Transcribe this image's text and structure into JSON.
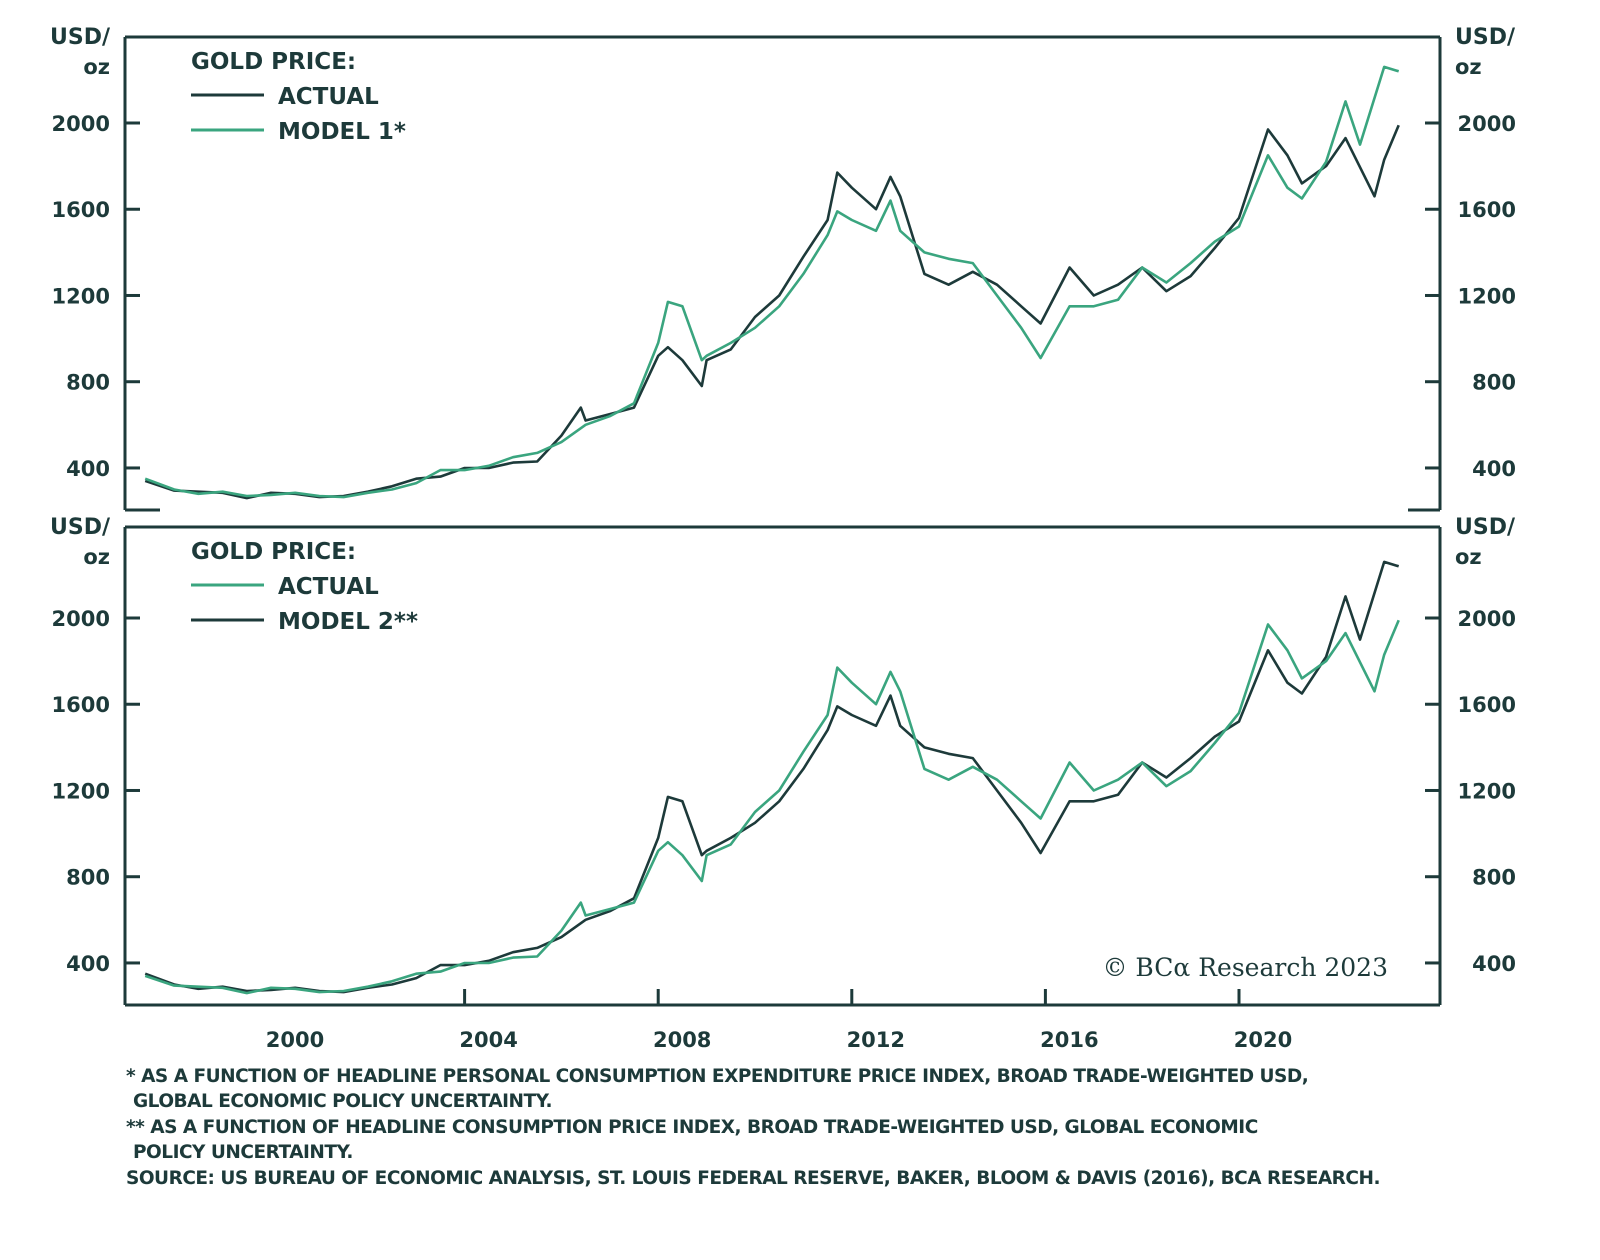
{
  "colors": {
    "dark": "#1d3a3a",
    "green": "#3aa57f"
  },
  "x_ticks": [
    2000,
    2004,
    2008,
    2012,
    2016,
    2020
  ],
  "y_ticks": [
    400,
    800,
    1200,
    1600,
    2000
  ],
  "unit_label_line1": "USD/",
  "unit_label_line2": "oz",
  "copyright": "© BCα Research 2023",
  "footnotes": {
    "note1_line1": "* AS A FUNCTION OF HEADLINE PERSONAL CONSUMPTION EXPENDITURE PRICE INDEX, BROAD TRADE-WEIGHTED USD,",
    "note1_line2": "GLOBAL ECONOMIC POLICY UNCERTAINTY.",
    "note2_line1": "** AS A FUNCTION OF HEADLINE CONSUMPTION PRICE INDEX, BROAD TRADE-WEIGHTED USD, GLOBAL ECONOMIC",
    "note2_line2": "POLICY UNCERTAINTY.",
    "source": "SOURCE: US BUREAU OF ECONOMIC ANALYSIS, ST. LOUIS FEDERAL RESERVE, BAKER, BLOOM & DAVIS (2016), BCA RESEARCH."
  },
  "chart_data": [
    {
      "type": "line",
      "title": "GOLD PRICE:",
      "ylabel": "USD/oz",
      "ylim": [
        220,
        2400
      ],
      "xlim": [
        1997,
        2024
      ],
      "legend": "top-left",
      "series": [
        {
          "name": "ACTUAL",
          "color": "dark",
          "x": [
            1997.4,
            1998,
            1998.5,
            1999,
            1999.5,
            2000,
            2000.5,
            2001,
            2001.5,
            2002,
            2002.5,
            2003,
            2003.5,
            2004,
            2004.5,
            2005,
            2005.5,
            2006,
            2006.4,
            2006.5,
            2007,
            2007.5,
            2008,
            2008.2,
            2008.5,
            2008.9,
            2009,
            2009.5,
            2010,
            2010.5,
            2011,
            2011.5,
            2011.7,
            2012,
            2012.5,
            2012.8,
            2013,
            2013.5,
            2014,
            2014.5,
            2015,
            2015.5,
            2015.9,
            2016.5,
            2017,
            2017.5,
            2018,
            2018.5,
            2019,
            2019.5,
            2020,
            2020.6,
            2021,
            2021.3,
            2021.8,
            2022.2,
            2022.8,
            2023,
            2023.3
          ],
          "y": [
            340,
            295,
            290,
            285,
            260,
            285,
            280,
            265,
            270,
            290,
            315,
            350,
            360,
            400,
            400,
            425,
            430,
            550,
            680,
            620,
            650,
            680,
            920,
            960,
            900,
            780,
            900,
            950,
            1100,
            1200,
            1380,
            1550,
            1770,
            1700,
            1600,
            1750,
            1660,
            1300,
            1250,
            1310,
            1250,
            1150,
            1070,
            1330,
            1200,
            1250,
            1330,
            1220,
            1290,
            1420,
            1560,
            1970,
            1850,
            1720,
            1800,
            1930,
            1660,
            1830,
            1990
          ]
        },
        {
          "name": "MODEL 1*",
          "color": "green",
          "x": [
            1997.4,
            1998,
            1998.5,
            1999,
            1999.5,
            2000,
            2000.5,
            2001,
            2001.5,
            2002,
            2002.5,
            2003,
            2003.5,
            2004,
            2004.5,
            2005,
            2005.5,
            2006,
            2006.5,
            2007,
            2007.5,
            2008,
            2008.2,
            2008.5,
            2008.9,
            2009,
            2009.5,
            2010,
            2010.5,
            2011,
            2011.5,
            2011.7,
            2012,
            2012.5,
            2012.8,
            2013,
            2013.5,
            2014,
            2014.5,
            2015,
            2015.5,
            2015.9,
            2016.5,
            2017,
            2017.5,
            2018,
            2018.5,
            2019,
            2019.5,
            2020,
            2020.6,
            2021,
            2021.3,
            2021.8,
            2022.2,
            2022.5,
            2023,
            2023.3
          ],
          "y": [
            350,
            300,
            280,
            290,
            270,
            275,
            285,
            270,
            265,
            285,
            300,
            330,
            390,
            390,
            410,
            450,
            470,
            520,
            600,
            640,
            700,
            980,
            1170,
            1150,
            900,
            920,
            980,
            1050,
            1150,
            1300,
            1480,
            1590,
            1550,
            1500,
            1640,
            1500,
            1400,
            1370,
            1350,
            1200,
            1050,
            910,
            1150,
            1150,
            1180,
            1330,
            1260,
            1350,
            1450,
            1520,
            1850,
            1700,
            1650,
            1820,
            2100,
            1900,
            2260,
            2240
          ]
        }
      ]
    },
    {
      "type": "line",
      "title": "GOLD PRICE:",
      "ylabel": "USD/oz",
      "ylim": [
        220,
        2400
      ],
      "xlim": [
        1997,
        2024
      ],
      "legend": "top-left",
      "series": [
        {
          "name": "ACTUAL",
          "color": "green",
          "x": [
            1997.4,
            1998,
            1998.5,
            1999,
            1999.5,
            2000,
            2000.5,
            2001,
            2001.5,
            2002,
            2002.5,
            2003,
            2003.5,
            2004,
            2004.5,
            2005,
            2005.5,
            2006,
            2006.4,
            2006.5,
            2007,
            2007.5,
            2008,
            2008.2,
            2008.5,
            2008.9,
            2009,
            2009.5,
            2010,
            2010.5,
            2011,
            2011.5,
            2011.7,
            2012,
            2012.5,
            2012.8,
            2013,
            2013.5,
            2014,
            2014.5,
            2015,
            2015.5,
            2015.9,
            2016.5,
            2017,
            2017.5,
            2018,
            2018.5,
            2019,
            2019.5,
            2020,
            2020.6,
            2021,
            2021.3,
            2021.8,
            2022.2,
            2022.8,
            2023,
            2023.3
          ],
          "y": [
            340,
            295,
            290,
            285,
            260,
            285,
            280,
            265,
            270,
            290,
            315,
            350,
            360,
            400,
            400,
            425,
            430,
            550,
            680,
            620,
            650,
            680,
            920,
            960,
            900,
            780,
            900,
            950,
            1100,
            1200,
            1380,
            1550,
            1770,
            1700,
            1600,
            1750,
            1660,
            1300,
            1250,
            1310,
            1250,
            1150,
            1070,
            1330,
            1200,
            1250,
            1330,
            1220,
            1290,
            1420,
            1560,
            1970,
            1850,
            1720,
            1800,
            1930,
            1660,
            1830,
            1990
          ]
        },
        {
          "name": "MODEL 2**",
          "color": "dark",
          "x": [
            1997.4,
            1998,
            1998.5,
            1999,
            1999.5,
            2000,
            2000.5,
            2001,
            2001.5,
            2002,
            2002.5,
            2003,
            2003.5,
            2004,
            2004.5,
            2005,
            2005.5,
            2006,
            2006.5,
            2007,
            2007.5,
            2008,
            2008.2,
            2008.5,
            2008.9,
            2009,
            2009.5,
            2010,
            2010.5,
            2011,
            2011.5,
            2011.7,
            2012,
            2012.5,
            2012.8,
            2013,
            2013.5,
            2014,
            2014.5,
            2015,
            2015.5,
            2015.9,
            2016.5,
            2017,
            2017.5,
            2018,
            2018.5,
            2019,
            2019.5,
            2020,
            2020.6,
            2021,
            2021.3,
            2021.8,
            2022.2,
            2022.5,
            2023,
            2023.3
          ],
          "y": [
            350,
            300,
            280,
            290,
            270,
            275,
            285,
            270,
            265,
            285,
            300,
            330,
            390,
            390,
            410,
            450,
            470,
            520,
            600,
            640,
            700,
            980,
            1170,
            1150,
            900,
            920,
            980,
            1050,
            1150,
            1300,
            1480,
            1590,
            1550,
            1500,
            1640,
            1500,
            1400,
            1370,
            1350,
            1200,
            1050,
            910,
            1150,
            1150,
            1180,
            1330,
            1260,
            1350,
            1450,
            1520,
            1850,
            1700,
            1650,
            1820,
            2100,
            1900,
            2260,
            2240
          ]
        }
      ]
    }
  ]
}
